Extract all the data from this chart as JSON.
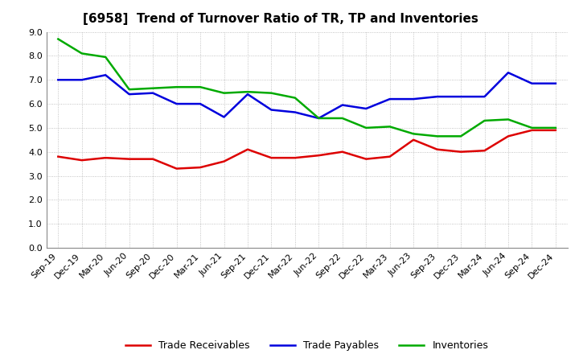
{
  "title": "[6958]  Trend of Turnover Ratio of TR, TP and Inventories",
  "x_labels": [
    "Sep-19",
    "Dec-19",
    "Mar-20",
    "Jun-20",
    "Sep-20",
    "Dec-20",
    "Mar-21",
    "Jun-21",
    "Sep-21",
    "Dec-21",
    "Mar-22",
    "Jun-22",
    "Sep-22",
    "Dec-22",
    "Mar-23",
    "Jun-23",
    "Sep-23",
    "Dec-23",
    "Mar-24",
    "Jun-24",
    "Sep-24",
    "Dec-24"
  ],
  "trade_receivables": [
    3.8,
    3.65,
    3.75,
    3.7,
    3.7,
    3.3,
    3.35,
    3.6,
    4.1,
    3.75,
    3.75,
    3.85,
    4.0,
    3.7,
    3.8,
    4.5,
    4.1,
    4.0,
    4.05,
    4.65,
    4.9,
    4.9
  ],
  "trade_payables": [
    7.0,
    7.0,
    7.2,
    6.4,
    6.45,
    6.0,
    6.0,
    5.45,
    6.4,
    5.75,
    5.65,
    5.4,
    5.95,
    5.8,
    6.2,
    6.2,
    6.3,
    6.3,
    6.3,
    7.3,
    6.85,
    6.85
  ],
  "inventories": [
    8.7,
    8.1,
    7.95,
    6.6,
    6.65,
    6.7,
    6.7,
    6.45,
    6.5,
    6.45,
    6.25,
    5.4,
    5.4,
    5.0,
    5.05,
    4.75,
    4.65,
    4.65,
    5.3,
    5.35,
    5.0,
    5.0
  ],
  "tr_color": "#dd0000",
  "tp_color": "#0000dd",
  "inv_color": "#00aa00",
  "ylim": [
    0.0,
    9.0
  ],
  "yticks": [
    0.0,
    1.0,
    2.0,
    3.0,
    4.0,
    5.0,
    6.0,
    7.0,
    8.0,
    9.0
  ],
  "legend_labels": [
    "Trade Receivables",
    "Trade Payables",
    "Inventories"
  ],
  "background_color": "#ffffff",
  "grid_color": "#aaaaaa",
  "line_width": 1.8,
  "title_fontsize": 11,
  "tick_fontsize": 8,
  "legend_fontsize": 9
}
